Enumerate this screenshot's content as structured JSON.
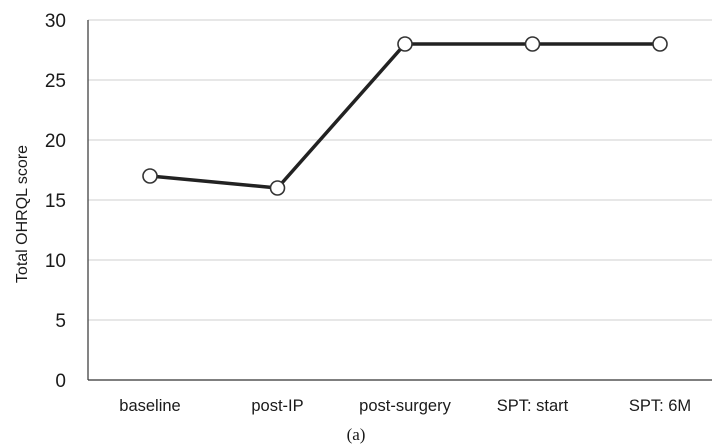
{
  "chart_data": {
    "type": "line",
    "categories": [
      "baseline",
      "post-IP",
      "post-surgery",
      "SPT: start",
      "SPT: 6M"
    ],
    "series": [
      {
        "values": [
          17,
          16,
          28,
          28,
          28
        ]
      }
    ],
    "ylabel": "Total OHRQL score",
    "xlabel": "",
    "ylim": [
      0,
      30
    ],
    "yticks": [
      0,
      5,
      10,
      15,
      20,
      25,
      30
    ],
    "grid": "horizontal",
    "line_color": "#222222",
    "marker": "open-circle",
    "gridline_color": "#cfcfcf"
  },
  "caption": "(a)"
}
